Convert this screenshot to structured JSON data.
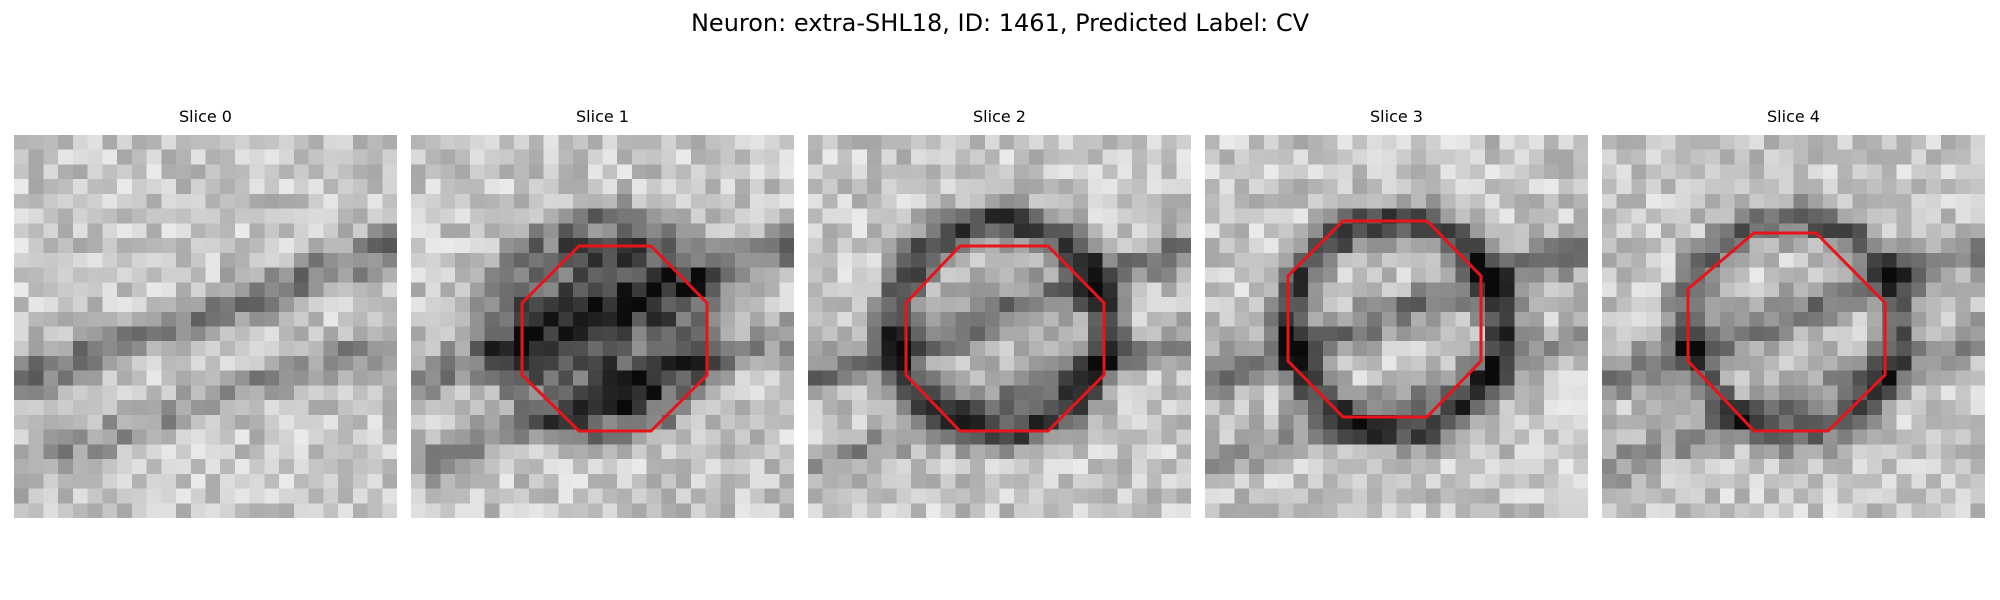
{
  "figure": {
    "title": "Neuron: extra-SHL18, ID: 1461, Predicted Label: CV"
  },
  "overlay": {
    "color": "#e8141a",
    "shape": "octagon"
  },
  "slices": [
    {
      "label": "Slice 0",
      "has_roi": false,
      "seed": 11,
      "ring": 0.0,
      "inner": 0.0
    },
    {
      "label": "Slice 1",
      "has_roi": true,
      "seed": 23,
      "ring": 0.35,
      "inner": 0.45
    },
    {
      "label": "Slice 2",
      "has_roi": true,
      "seed": 37,
      "ring": 0.55,
      "inner": 0.05
    },
    {
      "label": "Slice 3",
      "has_roi": true,
      "seed": 41,
      "ring": 0.55,
      "inner": 0.0
    },
    {
      "label": "Slice 4",
      "has_roi": true,
      "seed": 53,
      "ring": 0.45,
      "inner": 0.0
    }
  ]
}
